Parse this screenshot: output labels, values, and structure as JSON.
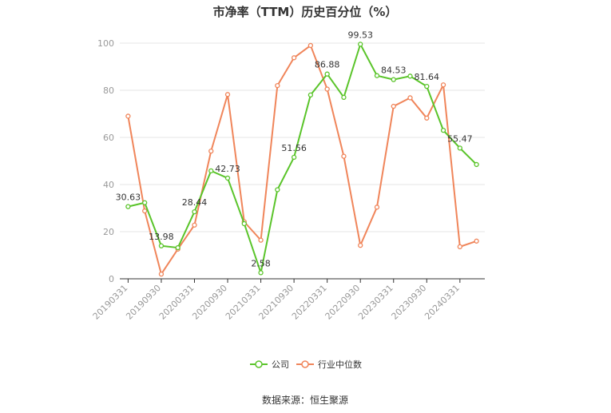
{
  "chart_data": {
    "type": "line",
    "title": "市净率（TTM）历史百分位（%）",
    "xlabel": "",
    "ylabel": "",
    "ylim": [
      0,
      100
    ],
    "yticks": [
      0,
      20,
      40,
      60,
      80,
      100
    ],
    "x": [
      "20190331",
      "20190630",
      "20190930",
      "20191231",
      "20200331",
      "20200630",
      "20200930",
      "20201231",
      "20210331",
      "20210630",
      "20210930",
      "20211231",
      "20220331",
      "20220630",
      "20220930",
      "20221231",
      "20230331",
      "20230630",
      "20230930",
      "20231231",
      "20240331",
      "20240630"
    ],
    "xtick_labels": [
      "20190331",
      "20190930",
      "20200331",
      "20200930",
      "20210331",
      "20210930",
      "20220331",
      "20220930",
      "20230331",
      "20230930",
      "20240331"
    ],
    "series": [
      {
        "name": "公司",
        "color": "#5ac42a",
        "values": [
          30.63,
          32.3,
          13.98,
          13.2,
          28.44,
          45.8,
          42.73,
          23.4,
          2.58,
          37.8,
          51.56,
          78.0,
          86.88,
          77.0,
          99.53,
          86.2,
          84.53,
          86.0,
          81.64,
          63.0,
          55.47,
          48.5
        ]
      },
      {
        "name": "行业中位数",
        "color": "#f0855a",
        "values": [
          69.0,
          28.8,
          2.0,
          12.6,
          22.8,
          54.2,
          78.2,
          24.2,
          16.4,
          82.0,
          93.8,
          99.0,
          80.5,
          52.0,
          14.2,
          30.4,
          73.2,
          76.8,
          68.2,
          82.3,
          13.6,
          16.0
        ]
      }
    ],
    "data_labels": [
      {
        "series": 0,
        "index": 0,
        "text": "30.63"
      },
      {
        "series": 0,
        "index": 2,
        "text": "13.98"
      },
      {
        "series": 0,
        "index": 4,
        "text": "28.44"
      },
      {
        "series": 0,
        "index": 6,
        "text": "42.73"
      },
      {
        "series": 0,
        "index": 8,
        "text": "2.58"
      },
      {
        "series": 0,
        "index": 10,
        "text": "51.56"
      },
      {
        "series": 0,
        "index": 12,
        "text": "86.88"
      },
      {
        "series": 0,
        "index": 14,
        "text": "99.53"
      },
      {
        "series": 0,
        "index": 16,
        "text": "84.53"
      },
      {
        "series": 0,
        "index": 18,
        "text": "81.64"
      },
      {
        "series": 0,
        "index": 20,
        "text": "55.47"
      }
    ],
    "grid": true,
    "legend_position": "bottom"
  },
  "source_text": "数据来源：恒生聚源"
}
